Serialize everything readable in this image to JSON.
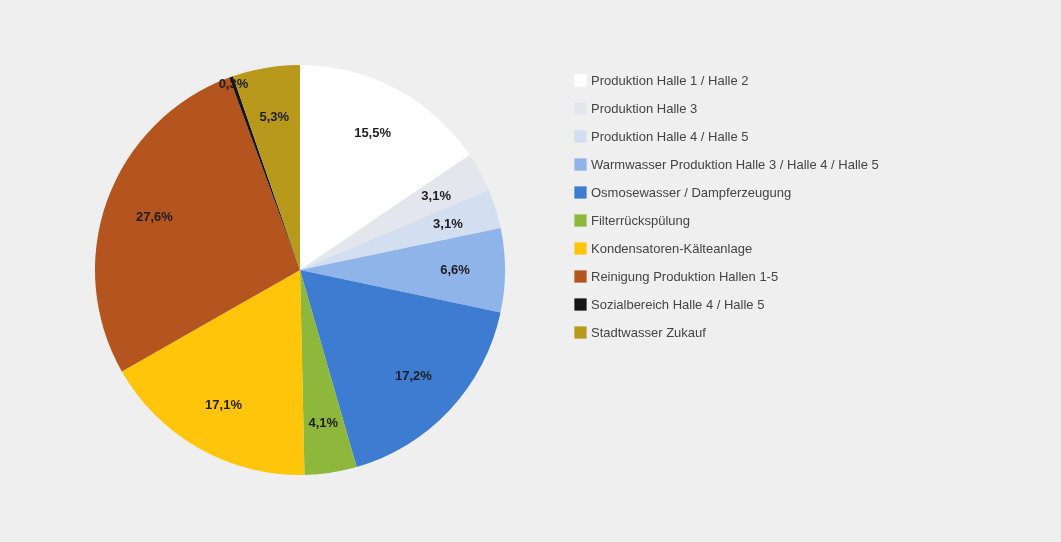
{
  "chart_data": {
    "type": "pie",
    "categories": [
      "Produktion Halle 1 / Halle 2",
      "Produktion Halle 3",
      "Produktion Halle 4 / Halle 5",
      "Warmwasser Produktion Halle 3 / Halle 4 / Halle 5",
      "Osmosewasser / Dampferzeugung",
      "Filterrückspülung",
      "Kondensatoren-Kälteanlage",
      "Reinigung Produktion Hallen 1-5",
      "Sozialbereich Halle 4 / Halle 5",
      "Stadtwasser Zukauf"
    ],
    "values": [
      15.5,
      3.1,
      3.1,
      6.6,
      17.2,
      4.1,
      17.1,
      27.6,
      0.3,
      5.3
    ],
    "colors": [
      "#ffffff",
      "#e3e6ec",
      "#d3def0",
      "#8fb4ea",
      "#3d7cd0",
      "#8db83c",
      "#ffc50a",
      "#b4541e",
      "#161616",
      "#b8991c"
    ],
    "value_labels": [
      "15,5%",
      "3,1%",
      "3,1%",
      "6,6%",
      "17,2%",
      "4,1%",
      "17,1%",
      "27,6%",
      "0,3%",
      "5,3%"
    ],
    "legend": "right"
  }
}
